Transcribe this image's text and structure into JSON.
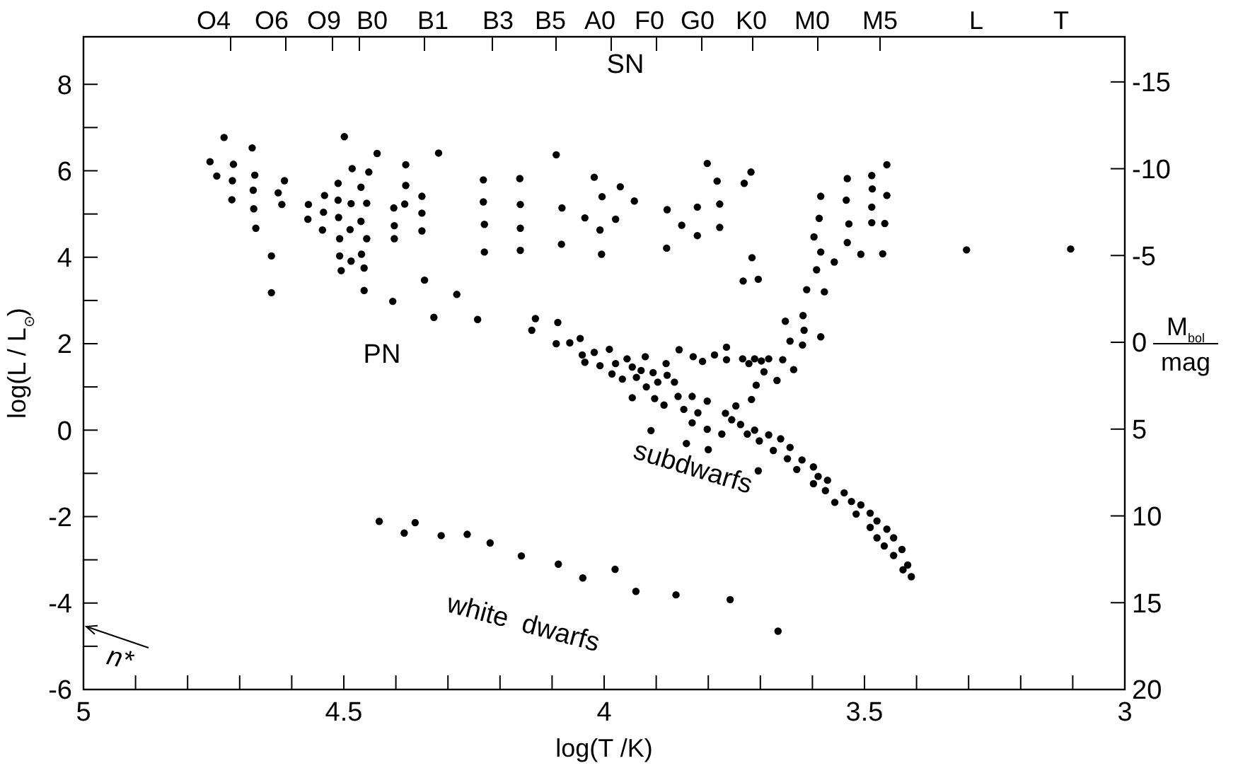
{
  "chart_data": {
    "type": "scatter",
    "xlabel": "log(T /K)",
    "ylabel": "log(L / L$_{⊙}$)",
    "y2label": "M$_{bol}$ mag",
    "xlim": [
      5,
      3
    ],
    "ylim": [
      -6,
      9.1
    ],
    "y2lim": [
      20,
      -17.6
    ],
    "xticks": [
      5,
      {
        "value": 4.9,
        "label": null
      },
      {
        "value": 4.8,
        "label": null
      },
      {
        "value": 4.7,
        "label": null
      },
      {
        "value": 4.6,
        "label": null
      },
      4.5,
      {
        "value": 4.4,
        "label": null
      },
      {
        "value": 4.3,
        "label": null
      },
      {
        "value": 4.2,
        "label": null
      },
      {
        "value": 4.1,
        "label": null
      },
      4,
      {
        "value": 3.9,
        "label": null
      },
      {
        "value": 3.8,
        "label": null
      },
      {
        "value": 3.7,
        "label": null
      },
      {
        "value": 3.6,
        "label": null
      },
      3.5,
      {
        "value": 3.4,
        "label": null
      },
      {
        "value": 3.3,
        "label": null
      },
      {
        "value": 3.2,
        "label": null
      },
      {
        "value": 3.1,
        "label": null
      },
      3
    ],
    "yticks": [
      -6,
      {
        "value": -5,
        "label": null
      },
      -4,
      {
        "value": -3,
        "label": null
      },
      -2,
      {
        "value": -1,
        "label": null
      },
      0,
      {
        "value": 1,
        "label": null
      },
      2,
      {
        "value": 3,
        "label": null
      },
      4,
      {
        "value": 5,
        "label": null
      },
      6,
      {
        "value": 7,
        "label": null
      },
      8
    ],
    "y2ticks": [
      -15,
      -10,
      -5,
      0,
      5,
      10,
      15,
      20
    ],
    "grid": false,
    "marker": "circle",
    "annotations": [
      "SN",
      "PN",
      "subdwarfs",
      "white  dwarfs",
      "n*",
      "O4",
      "O6",
      "O9",
      "B0",
      "B1",
      "B3",
      "B5",
      "A0",
      "F0",
      "G0",
      "K0",
      "M0",
      "M5",
      "L",
      "T"
    ],
    "series": [
      {
        "color": "#000000",
        "x": [
          4.73,
          4.676,
          4.757,
          4.712,
          4.744,
          4.714,
          4.671,
          4.674,
          4.614,
          4.626,
          4.715,
          4.673,
          4.619,
          4.669,
          4.639,
          4.639,
          4.499,
          4.436,
          4.484,
          4.452,
          4.511,
          4.467,
          4.537,
          4.511,
          4.486,
          4.456,
          4.568,
          4.569,
          4.539,
          4.51,
          4.467,
          4.541,
          4.488,
          4.508,
          4.456,
          4.508,
          4.466,
          4.486,
          4.505,
          4.461,
          4.461,
          4.381,
          4.381,
          4.383,
          4.404,
          4.35,
          4.35,
          4.403,
          4.403,
          4.35,
          4.318,
          4.345,
          4.283,
          4.406,
          4.327,
          4.243,
          4.132,
          4.089,
          4.232,
          4.162,
          4.232,
          4.161,
          4.23,
          4.161,
          4.23,
          4.161,
          4.092,
          4.081,
          4.082,
          4.019,
          3.969,
          4.004,
          4.037,
          3.978,
          4.008,
          4.005,
          3.942,
          3.802,
          3.783,
          3.718,
          3.731,
          3.879,
          3.821,
          3.778,
          3.851,
          3.778,
          3.821,
          3.88,
          3.716,
          3.733,
          3.704,
          3.652,
          3.618,
          3.584,
          3.587,
          3.597,
          3.584,
          3.592,
          3.558,
          3.611,
          3.577,
          3.533,
          3.486,
          3.457,
          3.485,
          3.457,
          3.535,
          3.486,
          3.53,
          3.486,
          3.461,
          3.533,
          3.507,
          3.465,
          3.304,
          3.104,
          4.139,
          3.616,
          3.643,
          3.619,
          3.584,
          3.636,
          3.668,
          3.708,
          3.717,
          4.092,
          4.066,
          4.046,
          4.042,
          4.037,
          4.019,
          4.008,
          3.99,
          3.978,
          3.985,
          3.965,
          3.956,
          3.946,
          3.946,
          3.938,
          3.921,
          3.929,
          3.919,
          3.906,
          3.903,
          3.897,
          3.881,
          3.879,
          3.885,
          3.865,
          3.858,
          3.856,
          3.829,
          3.847,
          3.831,
          3.811,
          3.82,
          3.802,
          3.788,
          3.765,
          3.767,
          3.747,
          3.755,
          3.765,
          3.831,
          3.802,
          3.774,
          3.738,
          3.734,
          3.722,
          3.711,
          3.698,
          3.684,
          3.657,
          3.693,
          3.725,
          3.711,
          3.702,
          3.684,
          3.661,
          3.643,
          3.675,
          3.648,
          3.62,
          3.598,
          3.63,
          3.589,
          3.571,
          3.598,
          3.575,
          3.539,
          3.557,
          3.525,
          3.507,
          3.516,
          3.489,
          3.476,
          3.489,
          3.457,
          3.476,
          3.444,
          3.462,
          3.428,
          3.444,
          3.417,
          3.426,
          3.41,
          3.91,
          3.842,
          3.8,
          3.704,
          4.432,
          4.384,
          4.363,
          4.313,
          4.263,
          4.219,
          4.159,
          4.088,
          4.041,
          3.979,
          3.939,
          3.862,
          3.758,
          3.666
        ],
        "values": [
          6.77,
          6.53,
          6.21,
          6.15,
          5.88,
          5.77,
          5.9,
          5.55,
          5.77,
          5.49,
          5.33,
          5.12,
          5.22,
          4.67,
          4.03,
          3.18,
          6.79,
          6.4,
          6.05,
          5.97,
          5.71,
          5.62,
          5.43,
          5.32,
          5.24,
          5.25,
          5.22,
          4.88,
          5.04,
          4.92,
          4.83,
          4.63,
          4.64,
          4.43,
          4.43,
          4.03,
          4.07,
          3.91,
          3.69,
          3.75,
          3.23,
          6.14,
          5.66,
          5.23,
          5.14,
          5.41,
          5.02,
          4.73,
          4.43,
          4.61,
          6.41,
          3.47,
          3.14,
          2.98,
          2.61,
          2.56,
          2.58,
          2.49,
          5.79,
          5.82,
          5.28,
          5.22,
          4.76,
          4.67,
          4.12,
          4.16,
          6.37,
          5.14,
          4.3,
          5.85,
          5.63,
          5.4,
          4.91,
          4.88,
          4.63,
          4.07,
          5.3,
          6.17,
          5.76,
          5.97,
          5.71,
          5.1,
          5.16,
          5.23,
          4.74,
          4.69,
          4.5,
          4.21,
          3.99,
          3.45,
          3.49,
          2.52,
          2.65,
          5.41,
          4.9,
          4.47,
          4.12,
          3.71,
          3.89,
          3.25,
          3.2,
          5.82,
          5.89,
          6.14,
          5.58,
          5.43,
          5.32,
          5.16,
          4.77,
          4.8,
          4.78,
          4.34,
          4.07,
          4.08,
          4.17,
          4.19,
          2.31,
          2.31,
          2.06,
          1.97,
          2.16,
          1.4,
          1.15,
          1.04,
          0.71,
          2,
          2.02,
          2.12,
          1.74,
          1.57,
          1.8,
          1.49,
          1.87,
          1.54,
          1.3,
          1.18,
          1.65,
          1.46,
          0.75,
          1.22,
          1.7,
          1.38,
          1,
          1.33,
          0.73,
          1.11,
          1.54,
          1.27,
          0.58,
          1.11,
          0.78,
          1.86,
          1.7,
          0.48,
          0.78,
          1.59,
          0.4,
          0.67,
          1.74,
          1.92,
          0.39,
          0.56,
          0.24,
          1.63,
          0.17,
          0.02,
          -0.09,
          0.13,
          1.65,
          1.54,
          1.65,
          1.6,
          1.65,
          1.63,
          1.35,
          -0.09,
          0,
          -0.25,
          -0.11,
          -0.2,
          -0.4,
          -0.47,
          -0.66,
          -0.69,
          -0.85,
          -0.91,
          -1.07,
          -1.16,
          -1.24,
          -1.4,
          -1.45,
          -1.67,
          -1.65,
          -1.73,
          -1.94,
          -1.92,
          -2.1,
          -2.25,
          -2.29,
          -2.49,
          -2.49,
          -2.68,
          -2.76,
          -2.9,
          -3.12,
          -3.23,
          -3.39,
          -0.01,
          -0.31,
          -0.45,
          -0.94,
          -2.11,
          -2.38,
          -2.14,
          -2.44,
          -2.41,
          -2.61,
          -2.91,
          -3.1,
          -3.42,
          -3.22,
          -3.73,
          -3.81,
          -3.92,
          -4.65
        ]
      }
    ]
  }
}
